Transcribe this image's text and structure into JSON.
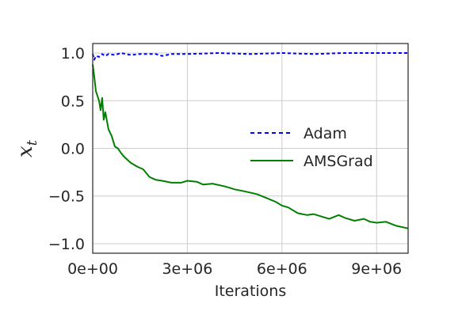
{
  "chart_data": {
    "type": "line",
    "title": "",
    "xlabel": "Iterations",
    "ylabel_main": "x",
    "ylabel_sub": "t",
    "xlim": [
      0,
      10000000
    ],
    "ylim": [
      -1.1,
      1.1
    ],
    "grid": true,
    "legend_position": "center-right",
    "x_ticks": [
      {
        "value": 0,
        "label": "0e+00"
      },
      {
        "value": 3000000,
        "label": "3e+06"
      },
      {
        "value": 6000000,
        "label": "6e+06"
      },
      {
        "value": 9000000,
        "label": "9e+06"
      }
    ],
    "y_ticks": [
      {
        "value": 1.0,
        "label": "1.0"
      },
      {
        "value": 0.5,
        "label": "0.5"
      },
      {
        "value": 0.0,
        "label": "0.0"
      },
      {
        "value": -0.5,
        "label": "−0.5"
      },
      {
        "value": -1.0,
        "label": "−1.0"
      }
    ],
    "series": [
      {
        "name": "Adam",
        "color": "#0000ff",
        "dash": "dashed",
        "x": [
          0,
          50000,
          100000,
          200000,
          300000,
          400000,
          500000,
          700000,
          900000,
          1200000,
          1500000,
          2000000,
          2200000,
          2500000,
          3000000,
          4000000,
          5000000,
          6000000,
          7000000,
          8000000,
          9000000,
          10000000
        ],
        "y": [
          0.99,
          0.93,
          0.97,
          0.96,
          0.99,
          0.97,
          0.99,
          0.98,
          1.0,
          0.98,
          0.99,
          0.99,
          0.97,
          0.99,
          0.99,
          1.0,
          0.99,
          1.0,
          0.99,
          1.0,
          1.0,
          1.0
        ]
      },
      {
        "name": "AMSGrad",
        "color": "#008000",
        "dash": "solid",
        "x": [
          0,
          50000,
          100000,
          200000,
          250000,
          300000,
          350000,
          400000,
          500000,
          600000,
          700000,
          800000,
          900000,
          1000000,
          1200000,
          1400000,
          1600000,
          1800000,
          2000000,
          2200000,
          2500000,
          2800000,
          3000000,
          3300000,
          3500000,
          3800000,
          4200000,
          4500000,
          4800000,
          5200000,
          5500000,
          5800000,
          6000000,
          6200000,
          6500000,
          6800000,
          7000000,
          7300000,
          7500000,
          7800000,
          8000000,
          8300000,
          8600000,
          8800000,
          9000000,
          9300000,
          9600000,
          10000000
        ],
        "y": [
          0.88,
          0.75,
          0.6,
          0.5,
          0.4,
          0.53,
          0.3,
          0.38,
          0.2,
          0.13,
          0.02,
          0.0,
          -0.05,
          -0.09,
          -0.15,
          -0.19,
          -0.22,
          -0.3,
          -0.33,
          -0.34,
          -0.36,
          -0.36,
          -0.34,
          -0.35,
          -0.38,
          -0.37,
          -0.4,
          -0.43,
          -0.45,
          -0.48,
          -0.52,
          -0.56,
          -0.6,
          -0.62,
          -0.68,
          -0.7,
          -0.69,
          -0.72,
          -0.74,
          -0.7,
          -0.73,
          -0.76,
          -0.74,
          -0.77,
          -0.78,
          -0.77,
          -0.81,
          -0.84
        ]
      }
    ]
  }
}
